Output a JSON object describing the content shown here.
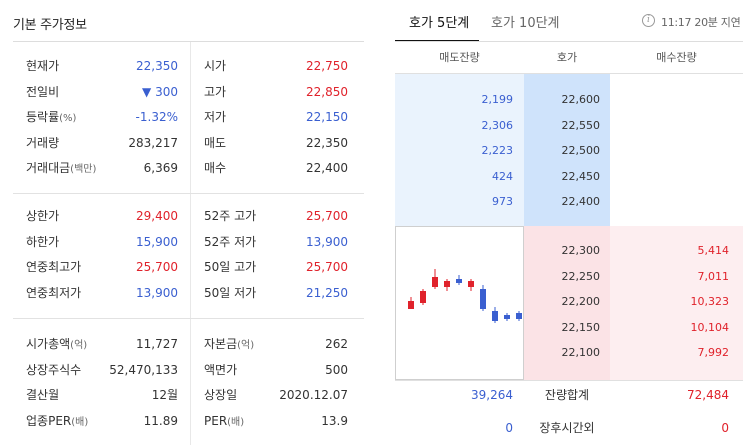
{
  "basic": {
    "title": "기본 주가정보",
    "group1": [
      {
        "l1": "현재가",
        "v1": "22,350",
        "c1": "blue",
        "l2": "시가",
        "v2": "22,750",
        "c2": "red"
      },
      {
        "l1": "전일비",
        "v1": "▼ 300",
        "c1": "blue",
        "l2": "고가",
        "v2": "22,850",
        "c2": "red"
      },
      {
        "l1": "등락률",
        "l1s": "(%)",
        "v1": "-1.32%",
        "c1": "blue",
        "l2": "저가",
        "v2": "22,150",
        "c2": "blue"
      },
      {
        "l1": "거래량",
        "v1": "283,217",
        "c1": "dark",
        "l2": "매도",
        "v2": "22,350",
        "c2": "dark"
      },
      {
        "l1": "거래대금",
        "l1s": "(백만)",
        "v1": "6,369",
        "c1": "dark",
        "l2": "매수",
        "v2": "22,400",
        "c2": "dark"
      }
    ],
    "group2": [
      {
        "l1": "상한가",
        "v1": "29,400",
        "c1": "red",
        "l2": "52주 고가",
        "v2": "25,700",
        "c2": "red"
      },
      {
        "l1": "하한가",
        "v1": "15,900",
        "c1": "blue",
        "l2": "52주 저가",
        "v2": "13,900",
        "c2": "blue"
      },
      {
        "l1": "연중최고가",
        "v1": "25,700",
        "c1": "red",
        "l2": "50일 고가",
        "v2": "25,700",
        "c2": "red"
      },
      {
        "l1": "연중최저가",
        "v1": "13,900",
        "c1": "blue",
        "l2": "50일 저가",
        "v2": "21,250",
        "c2": "blue"
      }
    ],
    "group3": [
      {
        "l1": "시가총액",
        "l1s": "(억)",
        "v1": "11,727",
        "c1": "dark",
        "l2": "자본금",
        "l2s": "(억)",
        "v2": "262",
        "c2": "dark"
      },
      {
        "l1": "상장주식수",
        "v1": "52,470,133",
        "c1": "dark",
        "l2": "액면가",
        "v2": "500",
        "c2": "dark"
      },
      {
        "l1": "결산월",
        "v1": "12월",
        "c1": "dark",
        "l2": "상장일",
        "v2": "2020.12.07",
        "c2": "dark"
      },
      {
        "l1": "업종PER",
        "l1s": "(배)",
        "v1": "11.89",
        "c1": "dark",
        "l2": "PER",
        "l2s": "(배)",
        "v2": "13.9",
        "c2": "dark"
      }
    ]
  },
  "orderbook": {
    "tabs": [
      "호가 5단계",
      "호가 10단계"
    ],
    "delay_text": "11:17 20분 지연",
    "headers": {
      "ask_qty": "매도잔량",
      "price": "호가",
      "bid_qty": "매수잔량"
    },
    "asks": [
      {
        "qty": "2,199",
        "price": "22,600"
      },
      {
        "qty": "2,306",
        "price": "22,550"
      },
      {
        "qty": "2,223",
        "price": "22,500"
      },
      {
        "qty": "424",
        "price": "22,450"
      },
      {
        "qty": "973",
        "price": "22,400"
      }
    ],
    "bids": [
      {
        "price": "22,300",
        "qty": "5,414"
      },
      {
        "price": "22,250",
        "qty": "7,011"
      },
      {
        "price": "22,200",
        "qty": "10,323"
      },
      {
        "price": "22,150",
        "qty": "10,104"
      },
      {
        "price": "22,100",
        "qty": "7,992"
      }
    ],
    "total": {
      "ask": "39,264",
      "label": "잔량합계",
      "bid": "72,484"
    },
    "after": {
      "ask": "0",
      "label": "장후시간외",
      "bid": "0"
    },
    "colors": {
      "up": "#e0222b",
      "down": "#3a5fd0"
    }
  },
  "chart_data": {
    "type": "candlestick",
    "candles": [
      {
        "dir": "up"
      },
      {
        "dir": "up"
      },
      {
        "dir": "up"
      },
      {
        "dir": "up"
      },
      {
        "dir": "down"
      },
      {
        "dir": "up"
      },
      {
        "dir": "down"
      },
      {
        "dir": "down"
      },
      {
        "dir": "down"
      },
      {
        "dir": "down"
      }
    ]
  }
}
